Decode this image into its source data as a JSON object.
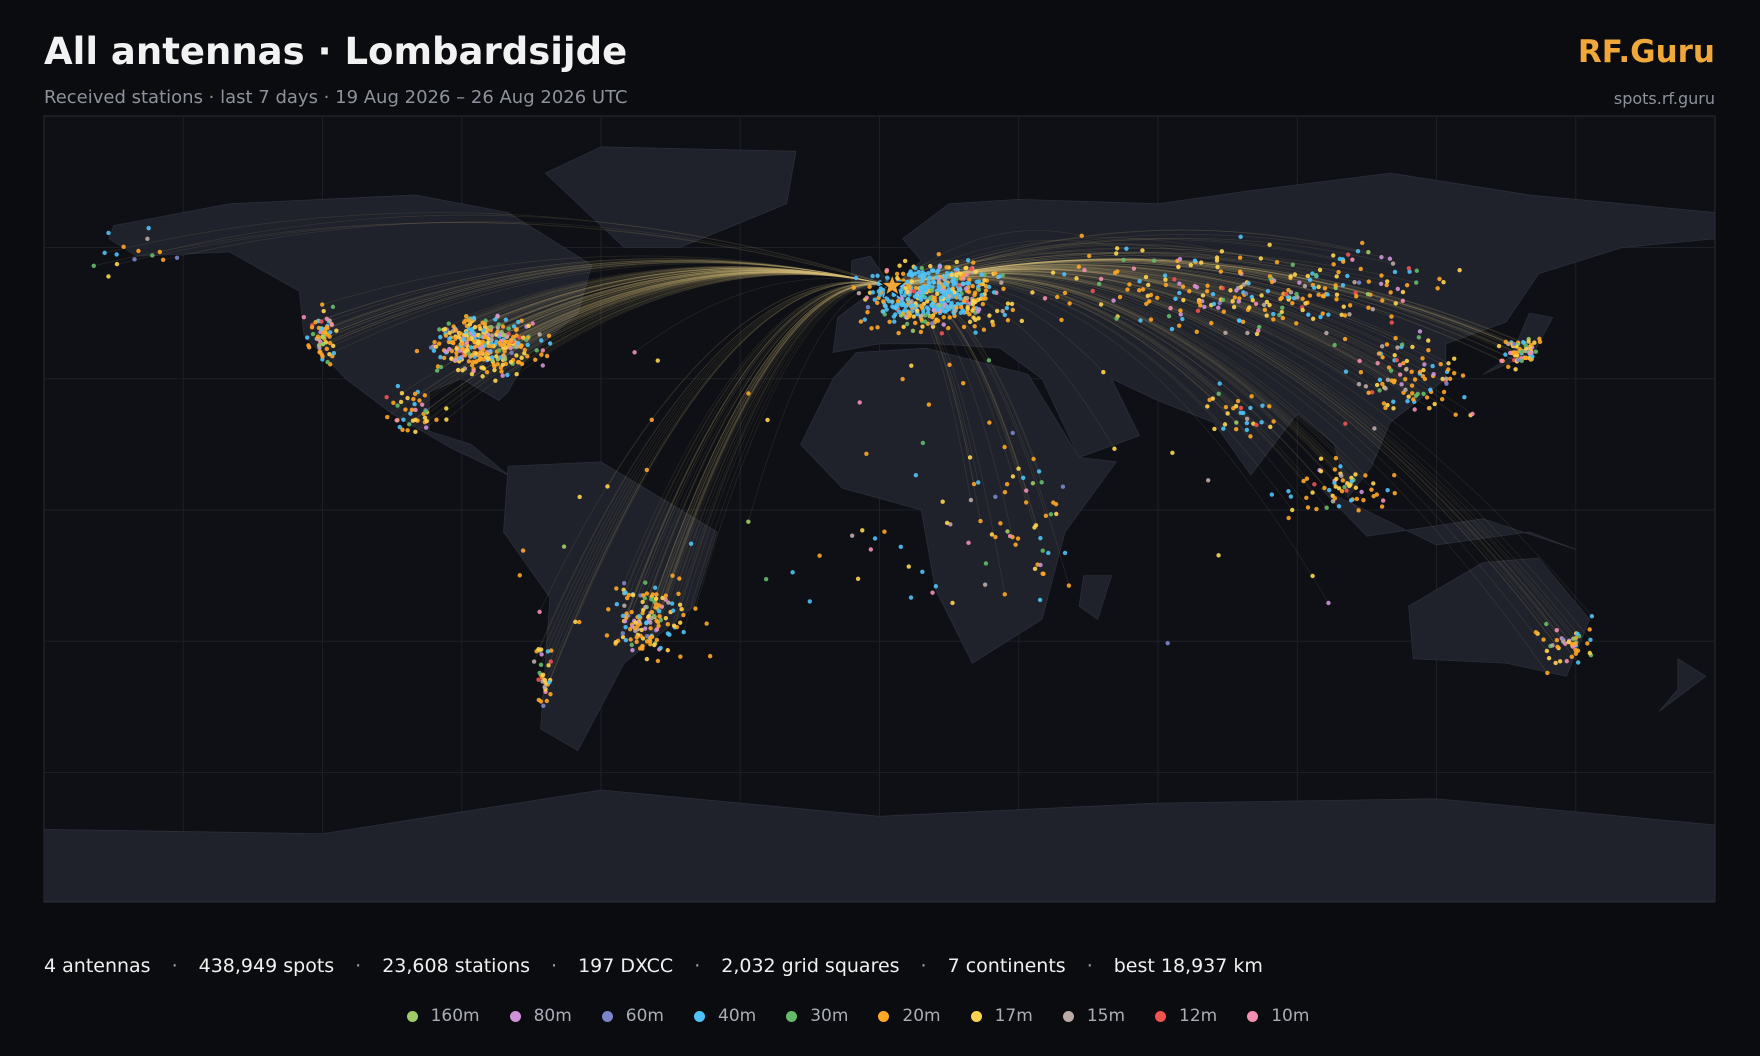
{
  "header": {
    "title": "All antennas · Lombardsijde",
    "subtitle": "Received stations · last 7 days · 19 Aug 2026 – 26 Aug 2026 UTC",
    "brand": "RF.Guru",
    "url": "spots.rf.guru"
  },
  "stats": {
    "separator": "·",
    "items": [
      "4 antennas",
      "438,949 spots",
      "23,608 stations",
      "197 DXCC",
      "2,032 grid squares",
      "7 continents",
      "best 18,937 km"
    ]
  },
  "legend": [
    {
      "label": "160m",
      "color": "#9ccc65"
    },
    {
      "label": "80m",
      "color": "#ce93d8"
    },
    {
      "label": "60m",
      "color": "#7986cb"
    },
    {
      "label": "40m",
      "color": "#4fc3f7"
    },
    {
      "label": "30m",
      "color": "#66bb6a"
    },
    {
      "label": "20m",
      "color": "#ffa726"
    },
    {
      "label": "17m",
      "color": "#ffd54f"
    },
    {
      "label": "15m",
      "color": "#bcaaa4"
    },
    {
      "label": "12m",
      "color": "#ef5350"
    },
    {
      "label": "10m",
      "color": "#f48fb1"
    }
  ]
}
